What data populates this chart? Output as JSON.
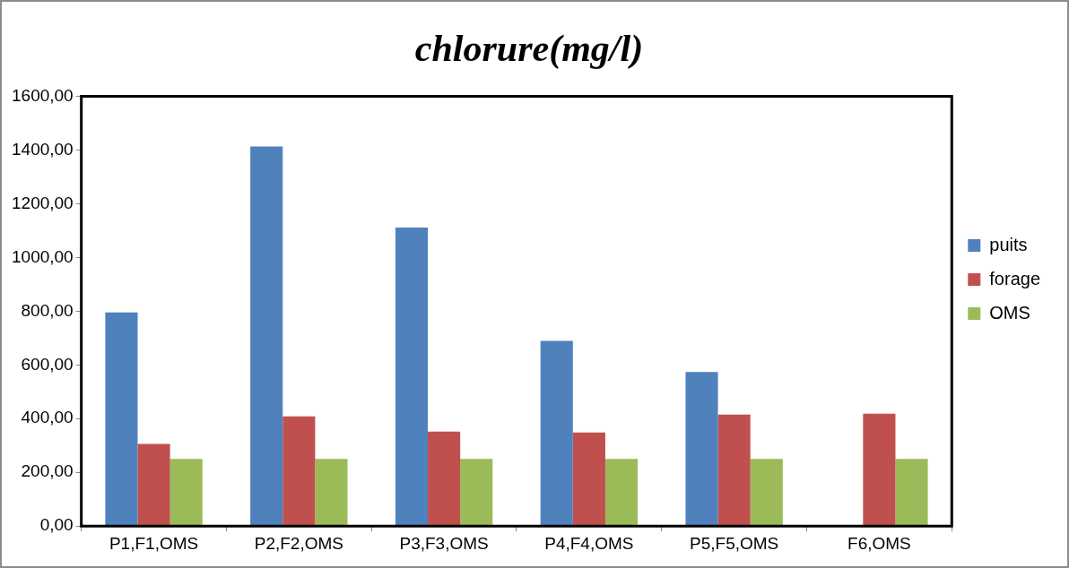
{
  "chart_data": {
    "type": "bar",
    "title": "chlorure(mg/l)",
    "categories": [
      "P1,F1,OMS",
      "P2,F2,OMS",
      "P3,F3,OMS",
      "P4,F4,OMS",
      "P5,F5,OMS",
      "F6,OMS"
    ],
    "series": [
      {
        "name": "puits",
        "color": "#4f81bd",
        "values": [
          795,
          1413,
          1111,
          689,
          573,
          null
        ]
      },
      {
        "name": "forage",
        "color": "#c0504d",
        "values": [
          306,
          408,
          352,
          348,
          415,
          418
        ]
      },
      {
        "name": "OMS",
        "color": "#9bbb59",
        "values": [
          250,
          250,
          250,
          250,
          250,
          250
        ]
      }
    ],
    "ylim": [
      0,
      1600
    ],
    "yticks": [
      {
        "value": 0,
        "label": "0,00"
      },
      {
        "value": 200,
        "label": "200,00"
      },
      {
        "value": 400,
        "label": "400,00"
      },
      {
        "value": 600,
        "label": "600,00"
      },
      {
        "value": 800,
        "label": "800,00"
      },
      {
        "value": 1000,
        "label": "1000,00"
      },
      {
        "value": 1200,
        "label": "1200,00"
      },
      {
        "value": 1400,
        "label": "1400,00"
      },
      {
        "value": 1600,
        "label": "1600,00"
      }
    ],
    "grid": false,
    "legend": "right"
  }
}
